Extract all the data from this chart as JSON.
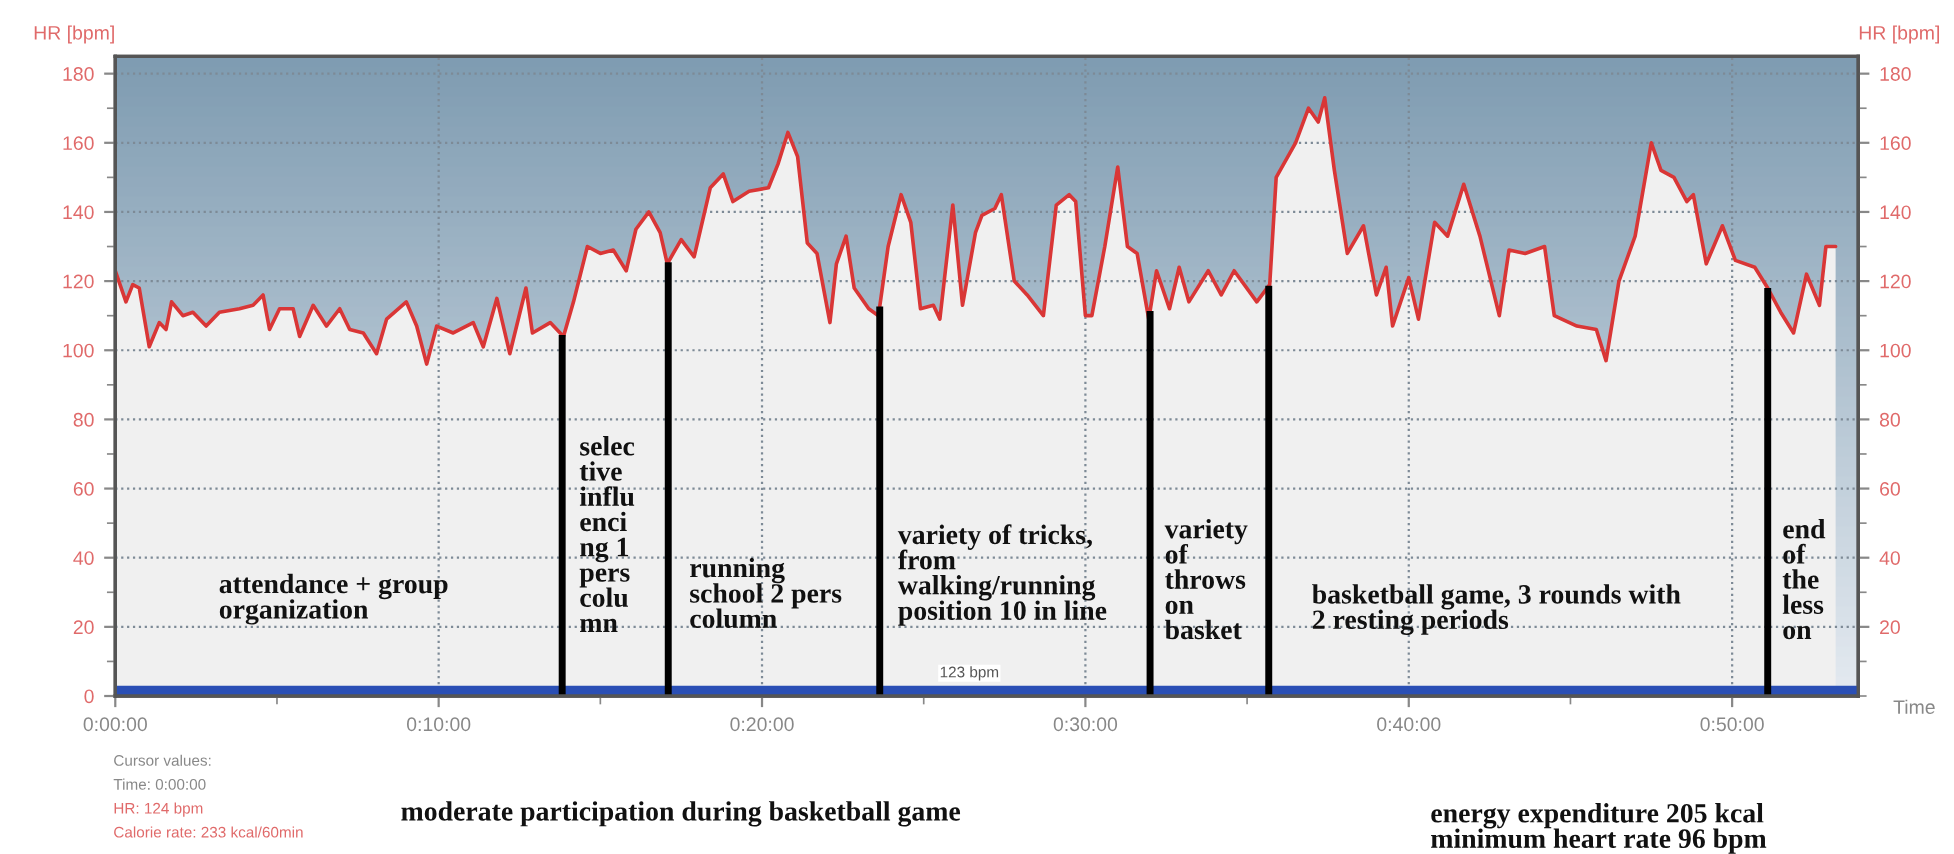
{
  "chart_data": {
    "type": "area",
    "xlabel": "Time",
    "ylabel": "HR [bpm]",
    "y2label": "HR [bpm]",
    "x": [
      0,
      0.33,
      0.54,
      0.74,
      1.05,
      1.36,
      1.57,
      1.74,
      2.09,
      2.4,
      2.81,
      3.22,
      3.84,
      4.26,
      4.57,
      4.77,
      5.08,
      5.5,
      5.7,
      6.12,
      6.53,
      6.94,
      7.25,
      7.67,
      8.08,
      8.39,
      9.0,
      9.32,
      9.63,
      9.94,
      10.45,
      11.07,
      11.38,
      11.8,
      12.2,
      12.7,
      12.9,
      13.45,
      13.86,
      14.17,
      14.6,
      15.0,
      15.4,
      15.8,
      16.1,
      16.5,
      16.85,
      17.07,
      17.5,
      17.9,
      18.4,
      18.8,
      19.1,
      19.6,
      20.2,
      20.5,
      20.8,
      21.1,
      21.4,
      21.7,
      22.1,
      22.3,
      22.6,
      22.85,
      23.3,
      23.6,
      23.9,
      24.3,
      24.6,
      24.9,
      25.3,
      25.5,
      25.9,
      26.2,
      26.6,
      26.8,
      27.2,
      27.4,
      27.8,
      28.2,
      28.7,
      29.1,
      29.5,
      29.7,
      30.0,
      30.2,
      30.6,
      31.0,
      31.3,
      31.6,
      31.96,
      32.2,
      32.6,
      32.9,
      33.2,
      33.8,
      34.2,
      34.6,
      35.3,
      35.7,
      35.9,
      36.5,
      36.9,
      37.2,
      37.4,
      37.7,
      38.1,
      38.6,
      39.0,
      39.3,
      39.5,
      40.0,
      40.3,
      40.8,
      41.2,
      41.7,
      42.2,
      42.8,
      43.1,
      43.6,
      44.2,
      44.5,
      45.2,
      45.8,
      46.1,
      46.5,
      47.0,
      47.5,
      47.8,
      48.2,
      48.6,
      48.8,
      49.2,
      49.7,
      50.1,
      50.7,
      51.1,
      51.5,
      51.9,
      52.3,
      52.7,
      52.9,
      53.2
    ],
    "series": [
      {
        "color": "#d93636",
        "values": [
          123,
          114,
          119,
          118,
          101,
          108,
          106,
          114,
          110,
          111,
          107,
          111,
          112,
          113,
          116,
          106,
          112,
          112,
          104,
          113,
          107,
          112,
          106,
          105,
          99,
          109,
          114,
          107,
          96,
          107,
          105,
          108,
          101,
          115,
          99,
          118,
          105,
          108,
          104,
          114,
          130,
          128,
          129,
          123,
          135,
          140,
          134,
          125,
          132,
          127,
          147,
          151,
          143,
          146,
          147,
          154,
          163,
          156,
          131,
          128,
          108,
          125,
          133,
          118,
          112,
          110,
          130,
          145,
          137,
          112,
          113,
          109,
          142,
          113,
          134,
          139,
          141,
          145,
          120,
          116,
          110,
          142,
          145,
          143,
          110,
          110,
          130,
          153,
          130,
          128,
          109,
          123,
          112,
          124,
          114,
          123,
          116,
          123,
          114,
          119,
          150,
          160,
          170,
          166,
          173,
          152,
          128,
          136,
          116,
          124,
          107,
          121,
          109,
          137,
          133,
          148,
          133,
          110,
          129,
          128,
          130,
          110,
          107,
          106,
          97,
          120,
          133,
          160,
          152,
          150,
          143,
          145,
          125,
          136,
          126,
          124,
          118,
          111,
          105,
          122,
          113,
          130,
          130
        ]
      }
    ],
    "xlim": [
      0,
      53.9
    ],
    "ylim": [
      0,
      185
    ],
    "y2lim": [
      0,
      185
    ],
    "xticks": [
      {
        "value": 0,
        "label": "0:00:00"
      },
      {
        "value": 5,
        "label": null
      },
      {
        "value": 10,
        "label": "0:10:00"
      },
      {
        "value": 15,
        "label": null
      },
      {
        "value": 20,
        "label": "0:20:00"
      },
      {
        "value": 25,
        "label": null
      },
      {
        "value": 30,
        "label": "0:30:00"
      },
      {
        "value": 35,
        "label": null
      },
      {
        "value": 40,
        "label": "0:40:00"
      },
      {
        "value": 45,
        "label": null
      },
      {
        "value": 50,
        "label": "0:50:00"
      }
    ],
    "yticks": [
      0,
      {
        "value": 10,
        "label": null
      },
      20,
      {
        "value": 30,
        "label": null
      },
      40,
      {
        "value": 50,
        "label": null
      },
      60,
      {
        "value": 70,
        "label": null
      },
      80,
      {
        "value": 90,
        "label": null
      },
      100,
      {
        "value": 110,
        "label": null
      },
      120,
      {
        "value": 130,
        "label": null
      },
      140,
      {
        "value": 150,
        "label": null
      },
      160,
      {
        "value": 170,
        "label": null
      },
      180
    ],
    "y2ticks": [
      {
        "value": 0,
        "label": null
      },
      {
        "value": 10,
        "label": null
      },
      20,
      {
        "value": 30,
        "label": null
      },
      40,
      {
        "value": 50,
        "label": null
      },
      60,
      {
        "value": 70,
        "label": null
      },
      80,
      {
        "value": 90,
        "label": null
      },
      100,
      {
        "value": 110,
        "label": null
      },
      120,
      {
        "value": 130,
        "label": null
      },
      140,
      {
        "value": 150,
        "label": null
      },
      160,
      {
        "value": 170,
        "label": null
      },
      180
    ],
    "grid": true,
    "ref_lines": [
      {
        "axis": "x",
        "value": 13.82,
        "color": "#000000"
      },
      {
        "axis": "x",
        "value": 17.1,
        "color": "#000000"
      },
      {
        "axis": "x",
        "value": 23.64,
        "color": "#000000"
      },
      {
        "axis": "x",
        "value": 32.0,
        "color": "#000000"
      },
      {
        "axis": "x",
        "value": 35.67,
        "color": "#000000"
      },
      {
        "axis": "x",
        "value": 51.1,
        "color": "#000000"
      }
    ],
    "bands": [
      {
        "axis": "y",
        "from": 0,
        "to": 3,
        "label": "123 bpm",
        "color": "#2a4fb5"
      }
    ],
    "annotations": [
      "attendance + group\norganization",
      "selec\ntive\ninflu\nenci\nng 1\npers\ncolu\nmn",
      "running\nschool 2 pers\ncolumn",
      "variety of tricks,\nfrom\nwalking/running\nposition 10 in line",
      "variety\nof\nthrows\non\nbasket",
      "basketball game, 3 rounds with\n2 resting periods",
      "end\nof\nthe\nless\non",
      "moderate participation during basketball game",
      "energy expenditure 205 kcal\nminimum heart rate 96 bpm",
      "Cursor values:",
      "Time: 0:00:00",
      "HR: 124 bpm",
      "Calorie rate: 233 kcal/60min"
    ]
  }
}
